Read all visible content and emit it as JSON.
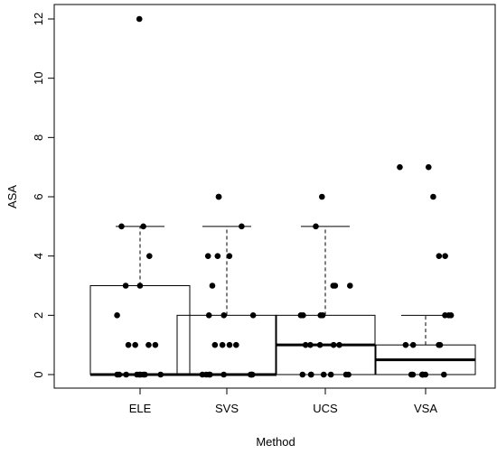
{
  "chart_data": {
    "type": "box",
    "xlabel": "Method",
    "ylabel": "ASA",
    "ylim": [
      0,
      12
    ],
    "yticks": [
      0,
      2,
      4,
      6,
      8,
      10,
      12
    ],
    "categories": [
      "ELE",
      "SVS",
      "UCS",
      "VSA"
    ],
    "boxes": [
      {
        "name": "ELE",
        "whisker_low": 0,
        "q1": 0,
        "median": 0,
        "q3": 3,
        "whisker_high": 5,
        "points": [
          0,
          0,
          0,
          0,
          0,
          0,
          0,
          0,
          0,
          1,
          1,
          1,
          1,
          2,
          3,
          3,
          4,
          5,
          5,
          12
        ]
      },
      {
        "name": "SVS",
        "whisker_low": 0,
        "q1": 0,
        "median": 0,
        "q3": 2,
        "whisker_high": 5,
        "points": [
          0,
          0,
          0,
          0,
          0,
          0,
          0,
          0,
          1,
          1,
          1,
          1,
          2,
          2,
          2,
          3,
          4,
          4,
          4,
          5,
          6,
          6
        ]
      },
      {
        "name": "UCS",
        "whisker_low": 0,
        "q1": 0,
        "median": 1,
        "q3": 2,
        "whisker_high": 5,
        "points": [
          0,
          0,
          0,
          0,
          0,
          0,
          0,
          1,
          1,
          1,
          1,
          1,
          2,
          2,
          2,
          2,
          3,
          3,
          3,
          5,
          6
        ]
      },
      {
        "name": "VSA",
        "whisker_low": 0,
        "q1": 0,
        "median": 0.5,
        "q3": 1,
        "whisker_high": 2,
        "points": [
          0,
          0,
          0,
          0,
          0,
          0,
          0,
          1,
          1,
          1,
          1,
          2,
          2,
          2,
          4,
          4,
          6,
          7,
          7
        ]
      }
    ]
  }
}
